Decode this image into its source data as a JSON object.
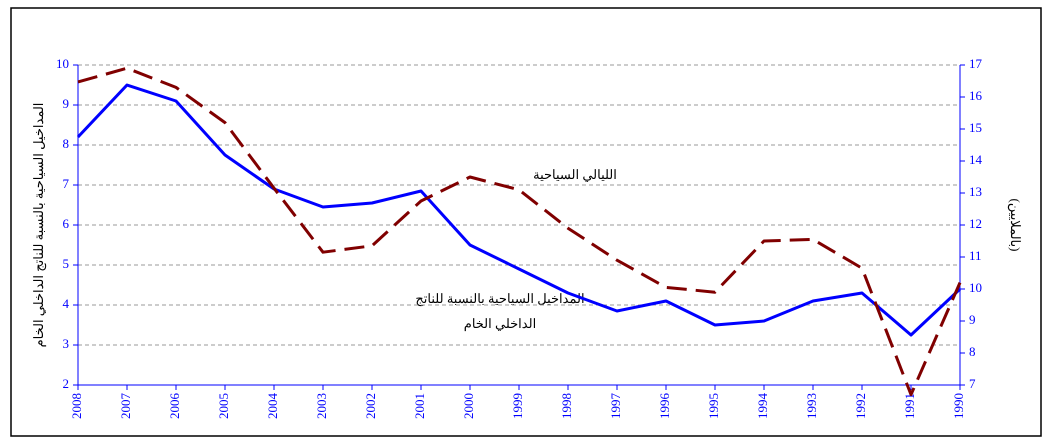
{
  "chart_data": {
    "type": "line",
    "categories": [
      "2008",
      "2007",
      "2006",
      "2005",
      "2004",
      "2003",
      "2002",
      "2001",
      "2000",
      "1999",
      "1998",
      "1997",
      "1996",
      "1995",
      "1994",
      "1993",
      "1992",
      "1991",
      "1990"
    ],
    "series": [
      {
        "name": "المداخيل السياحية بالنسبة للناتج الداخلي الخام",
        "color": "#0000ff",
        "dashed": false,
        "values": [
          8.2,
          9.5,
          9.1,
          7.75,
          6.9,
          6.45,
          6.55,
          6.85,
          5.5,
          4.9,
          4.3,
          3.85,
          4.1,
          3.5,
          3.6,
          4.1,
          4.3,
          3.25,
          4.4
        ]
      },
      {
        "name": "الليالي السياحية",
        "color": "#800000",
        "dashed": true,
        "axis": "y2",
        "values": [
          16.47,
          16.9,
          16.3,
          15.2,
          13.15,
          11.15,
          11.35,
          12.75,
          13.5,
          13.1,
          11.9,
          10.9,
          10.05,
          9.9,
          11.5,
          11.55,
          10.65,
          6.7,
          10.2
        ]
      }
    ],
    "annotations": [
      "الليالي السياحية",
      "المداخيل السياحية بالنسبة للناتج",
      "الداخلي الخام"
    ],
    "ylabel": "المداخيل السياحية بالنسبة للناتج الداخلي الخام",
    "y2label": "(بالملايين)",
    "ylim": [
      2,
      10
    ],
    "yticks": [
      2,
      3,
      4,
      5,
      6,
      7,
      8,
      9,
      10
    ],
    "y2lim": [
      7,
      17
    ],
    "y2ticks": [
      7,
      8,
      9,
      10,
      11,
      12,
      13,
      14,
      15,
      16,
      17
    ],
    "grid": true
  }
}
